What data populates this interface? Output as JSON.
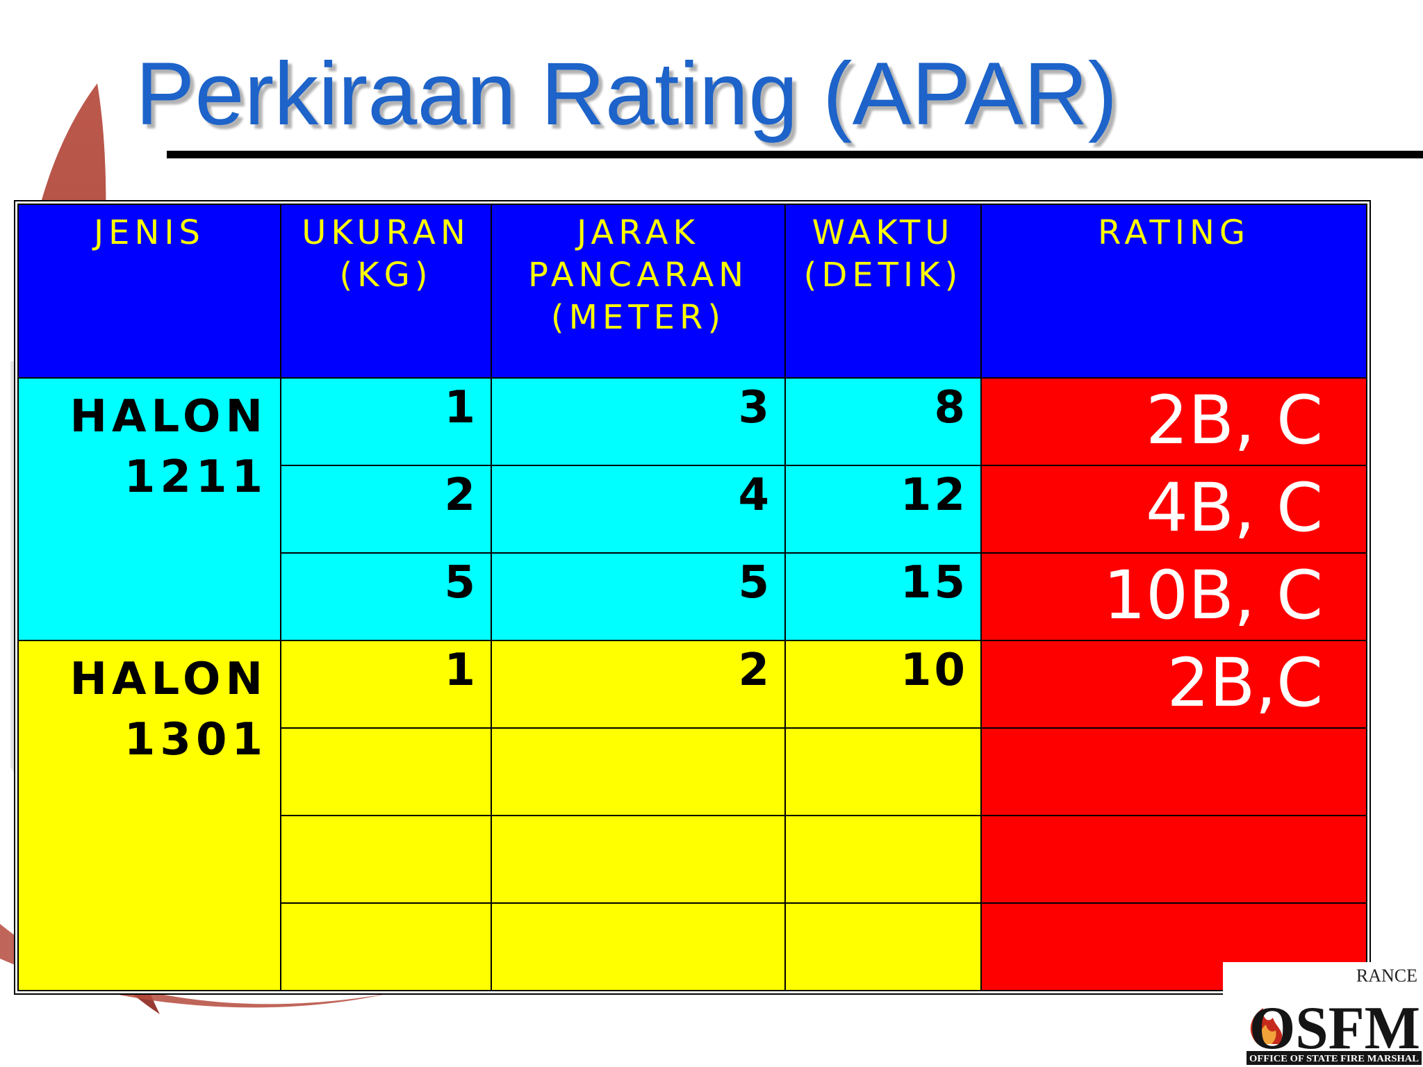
{
  "slide": {
    "title": "Perkiraan Rating (APAR)",
    "table": {
      "headers": [
        {
          "line1": "JENIS",
          "line2": "",
          "line3": ""
        },
        {
          "line1": "UKURAN",
          "line2": "(KG)",
          "line3": ""
        },
        {
          "line1": "JARAK",
          "line2": "PANCARAN",
          "line3": "(METER)"
        },
        {
          "line1": "WAKTU",
          "line2": "(DETIK)",
          "line3": ""
        },
        {
          "line1": "RATING",
          "line2": "",
          "line3": ""
        }
      ],
      "groups": [
        {
          "jenis_line1": "HALON",
          "jenis_line2": "1211",
          "color": "#00ffff",
          "rows": [
            {
              "ukuran": "1",
              "jarak": "3",
              "waktu": "8",
              "rating": "2B, C"
            },
            {
              "ukuran": "2",
              "jarak": "4",
              "waktu": "12",
              "rating": "4B, C"
            },
            {
              "ukuran": "5",
              "jarak": "5",
              "waktu": "15",
              "rating": "10B, C"
            }
          ]
        },
        {
          "jenis_line1": "HALON",
          "jenis_line2": "1301",
          "color": "#ffff00",
          "rows": [
            {
              "ukuran": "1",
              "jarak": "2",
              "waktu": "10",
              "rating": "2B,C"
            },
            {
              "ukuran": "",
              "jarak": "",
              "waktu": "",
              "rating": ""
            },
            {
              "ukuran": "",
              "jarak": "",
              "waktu": "",
              "rating": ""
            },
            {
              "ukuran": "",
              "jarak": "",
              "waktu": "",
              "rating": ""
            }
          ]
        }
      ]
    },
    "logo": {
      "top_text": "RANCE",
      "main_text": "OSFM",
      "sub_text": "OFFICE OF STATE FIRE MARSHAL",
      "icon": "flame-icon"
    },
    "colors": {
      "title": "#1d63c9",
      "header_bg": "#0000ff",
      "header_text": "#ffff00",
      "rating_bg": "#ff0000",
      "decor_swoosh": "#a6382b"
    }
  }
}
